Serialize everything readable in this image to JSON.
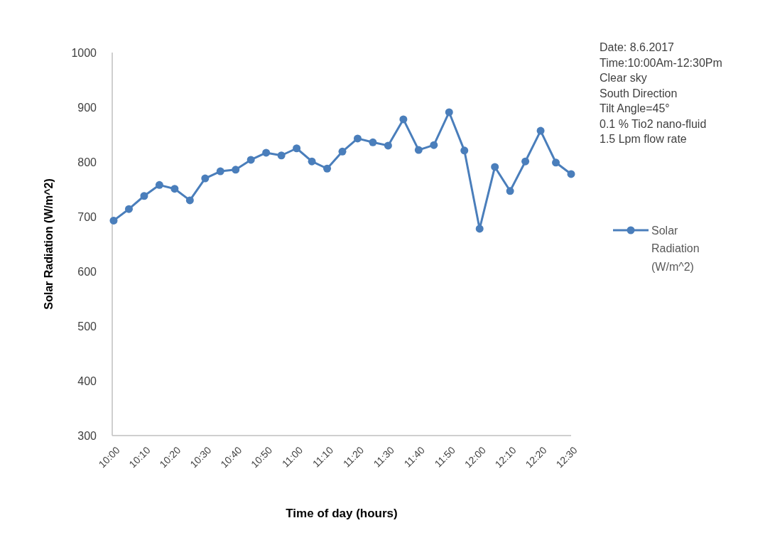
{
  "chart_data": {
    "type": "line",
    "xlabel": "Time of day (hours)",
    "ylabel": "Solar Radiation (W/m^2)",
    "categories": [
      "10:00",
      null,
      "10:10",
      null,
      "10:20",
      null,
      "10:30",
      null,
      "10:40",
      null,
      "10:50",
      null,
      "11:00",
      null,
      "11:10",
      null,
      "11:20",
      null,
      "11:30",
      null,
      "11:40",
      null,
      "11:50",
      null,
      "12:00",
      null,
      "12:10",
      null,
      "12:20",
      null,
      "12:30"
    ],
    "series": [
      {
        "name": "Solar Radiation (W/m^2)",
        "color": "#4a7ebb",
        "values": [
          693,
          714,
          738,
          758,
          751,
          730,
          770,
          783,
          786,
          804,
          817,
          812,
          825,
          801,
          788,
          819,
          843,
          836,
          830,
          878,
          822,
          831,
          891,
          821,
          678,
          791,
          747,
          801,
          857,
          799,
          778
        ]
      }
    ],
    "ylim": [
      300,
      1000
    ],
    "yticks": [
      300,
      400,
      500,
      600,
      700,
      800,
      900,
      1000
    ],
    "grid": false,
    "legend": "right",
    "marker": "circle",
    "line_style": "solid",
    "annotations": [
      "Date: 8.6.2017",
      "Time:10:00Am-12:30Pm",
      "Clear sky",
      "South Direction",
      "Tilt Angle=45°",
      "0.1 % Tio2 nano-fluid",
      "1.5 Lpm flow rate"
    ]
  }
}
